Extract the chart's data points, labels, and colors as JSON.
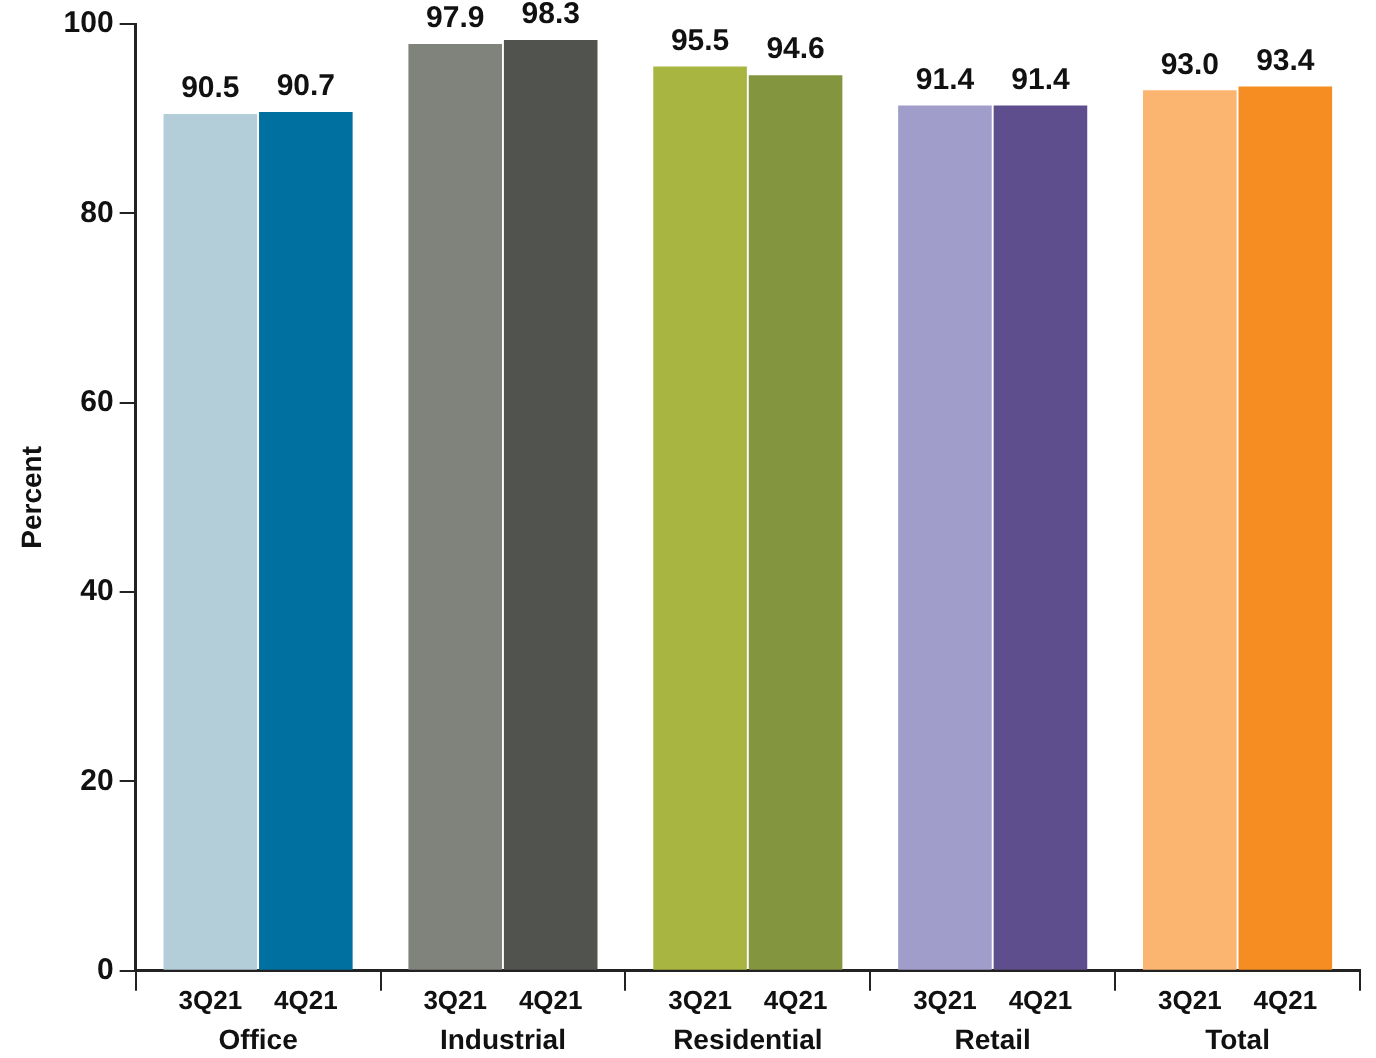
{
  "chart_data": {
    "type": "bar",
    "ylabel": "Percent",
    "categories": [
      "Office",
      "Industrial",
      "Residential",
      "Retail",
      "Total"
    ],
    "series": [
      {
        "name": "3Q21",
        "colors": [
          "#b3cdd9",
          "#80827c",
          "#a8b641",
          "#a09dcb",
          "#fcb571"
        ],
        "values": [
          90.5,
          97.9,
          95.5,
          91.4,
          93.0
        ],
        "value_labels": [
          "90.5",
          "97.9",
          "95.5",
          "91.4",
          "93.0"
        ]
      },
      {
        "name": "4Q21",
        "colors": [
          "#0070a0",
          "#51534f",
          "#84953f",
          "#5f4e8d",
          "#f68d23"
        ],
        "values": [
          90.7,
          98.3,
          94.6,
          91.4,
          93.4
        ],
        "value_labels": [
          "90.7",
          "98.3",
          "94.6",
          "91.4",
          "93.4"
        ]
      }
    ],
    "ylim": [
      0,
      100
    ],
    "yticks": [
      0,
      20,
      40,
      60,
      80,
      100
    ],
    "grid": false,
    "legend": false
  }
}
